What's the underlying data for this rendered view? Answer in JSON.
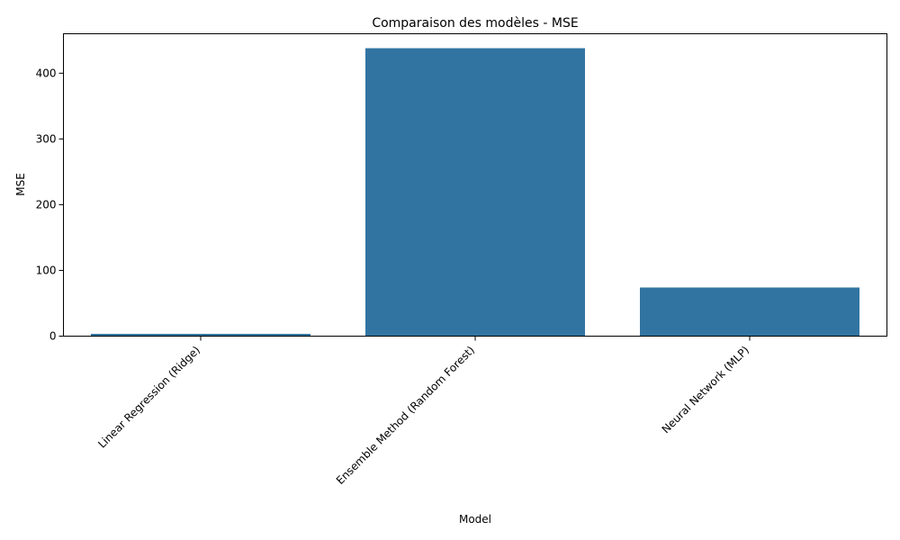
{
  "chart_data": {
    "type": "bar",
    "title": "Comparaison des modèles - MSE",
    "xlabel": "Model",
    "ylabel": "MSE",
    "categories": [
      "Linear Regression (Ridge)",
      "Ensemble Method (Random Forest)",
      "Neural Network (MLP)"
    ],
    "values": [
      3.5,
      438,
      74
    ],
    "ylim": [
      0,
      460
    ],
    "yticks": [
      0,
      100,
      200,
      300,
      400
    ],
    "x_tick_rotation_deg": 45,
    "grid": false,
    "legend": "none",
    "bar_color": "#3274a1"
  }
}
